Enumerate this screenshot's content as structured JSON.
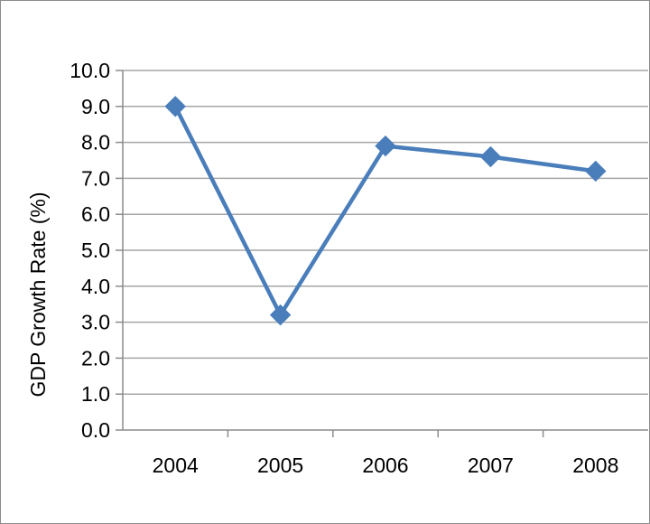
{
  "chart_data": {
    "type": "line",
    "title": "",
    "xlabel": "",
    "ylabel": "GDP Growth Rate (%)",
    "categories": [
      "2004",
      "2005",
      "2006",
      "2007",
      "2008"
    ],
    "series": [
      {
        "values": [
          9.0,
          3.2,
          7.9,
          7.6,
          7.2
        ],
        "color": "#4a7ebb",
        "marker": "diamond"
      }
    ],
    "ylim": [
      0,
      10
    ],
    "yticks": [
      "0.0",
      "1.0",
      "2.0",
      "3.0",
      "4.0",
      "5.0",
      "6.0",
      "7.0",
      "8.0",
      "9.0",
      "10.0"
    ],
    "grid": "horizontal",
    "legend": "none",
    "colors": {
      "gridline": "#a6a6a6",
      "axis": "#8c8c8c",
      "frame": "#8c8c8c"
    }
  }
}
